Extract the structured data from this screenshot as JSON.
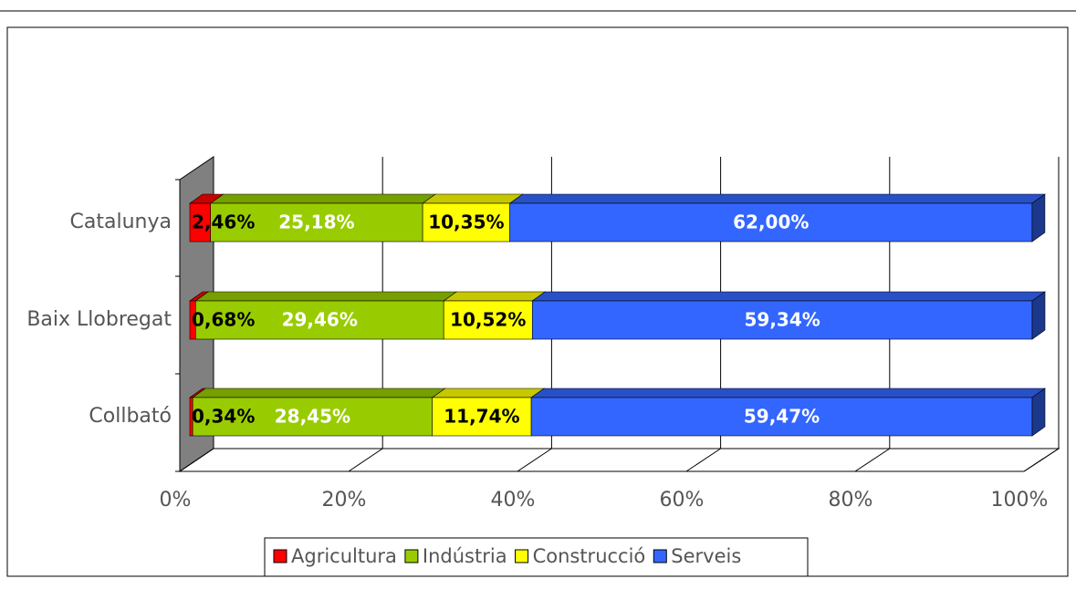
{
  "chart_data": {
    "type": "bar3d_stacked_percent_horizontal",
    "categories": [
      "Catalunya",
      "Baix Llobregat",
      "Collbató"
    ],
    "series": [
      {
        "name": "Agricultura",
        "color": "#ff0000",
        "values": [
          2.46,
          0.68,
          0.34
        ],
        "value_labels": [
          "2,46%",
          "0,68%",
          "0,34%"
        ]
      },
      {
        "name": "Indústria",
        "color": "#99cc00",
        "values": [
          25.18,
          29.46,
          28.45
        ],
        "value_labels": [
          "25,18%",
          "29,46%",
          "28,45%"
        ]
      },
      {
        "name": "Construcció",
        "color": "#ffff00",
        "values": [
          10.35,
          10.52,
          11.74
        ],
        "value_labels": [
          "10,35%",
          "10,52%",
          "11,74%"
        ]
      },
      {
        "name": "Serveis",
        "color": "#3366ff",
        "values": [
          62.0,
          59.34,
          59.47
        ],
        "value_labels": [
          "62,00%",
          "59,34%",
          "59,47%"
        ]
      }
    ],
    "xlim": [
      0,
      100
    ],
    "xticks": [
      {
        "value": 0,
        "label": "0%"
      },
      {
        "value": 20,
        "label": "20%"
      },
      {
        "value": 40,
        "label": "40%"
      },
      {
        "value": 60,
        "label": "60%"
      },
      {
        "value": 80,
        "label": "80%"
      },
      {
        "value": 100,
        "label": "100%"
      }
    ],
    "grid": true,
    "legend": "bottom"
  }
}
